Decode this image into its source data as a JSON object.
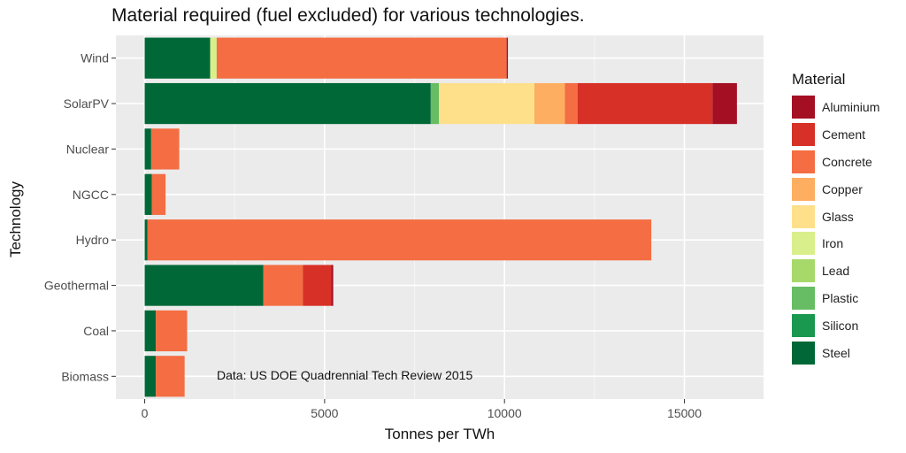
{
  "chart_data": {
    "type": "bar",
    "orientation": "horizontal",
    "stacked": true,
    "title": "Material required (fuel excluded) for various technologies.",
    "xlabel": "Tonnes per TWh",
    "ylabel": "Technology",
    "xlim": [
      -800,
      17200
    ],
    "xticks": [
      0,
      5000,
      10000,
      15000
    ],
    "xtick_labels": [
      "0",
      "5000",
      "10000",
      "15000"
    ],
    "grid": true,
    "background": "#ebebeb",
    "legend_title": "Material",
    "legend_position": "right",
    "note": "Data: US DOE Quadrennial Tech Review 2015",
    "categories": [
      "Wind",
      "SolarPV",
      "Nuclear",
      "NGCC",
      "Hydro",
      "Geothermal",
      "Coal",
      "Biomass"
    ],
    "series": [
      {
        "name": "Aluminium",
        "color": "#a50f23",
        "values": [
          35,
          680,
          0,
          0,
          0,
          60,
          0,
          0
        ]
      },
      {
        "name": "Cement",
        "color": "#d73027",
        "values": [
          0,
          3750,
          0,
          0,
          0,
          780,
          0,
          0
        ]
      },
      {
        "name": "Concrete",
        "color": "#f46d43",
        "values": [
          8060,
          350,
          780,
          380,
          14000,
          1100,
          870,
          800
        ]
      },
      {
        "name": "Copper",
        "color": "#fdae61",
        "values": [
          0,
          850,
          0,
          0,
          0,
          0,
          0,
          0
        ]
      },
      {
        "name": "Glass",
        "color": "#fee08b",
        "values": [
          0,
          2650,
          0,
          0,
          0,
          0,
          0,
          0
        ]
      },
      {
        "name": "Iron",
        "color": "#d9ef8b",
        "values": [
          180,
          0,
          0,
          0,
          0,
          0,
          0,
          0
        ]
      },
      {
        "name": "Lead",
        "color": "#a6d96a",
        "values": [
          0,
          0,
          0,
          0,
          0,
          0,
          0,
          0
        ]
      },
      {
        "name": "Plastic",
        "color": "#66bd63",
        "values": [
          0,
          230,
          0,
          0,
          0,
          0,
          0,
          0
        ]
      },
      {
        "name": "Silicon",
        "color": "#1a9850",
        "values": [
          0,
          0,
          0,
          0,
          0,
          0,
          0,
          0
        ]
      },
      {
        "name": "Steel",
        "color": "#006837",
        "values": [
          1820,
          7950,
          180,
          200,
          80,
          3300,
          310,
          310
        ]
      }
    ]
  }
}
